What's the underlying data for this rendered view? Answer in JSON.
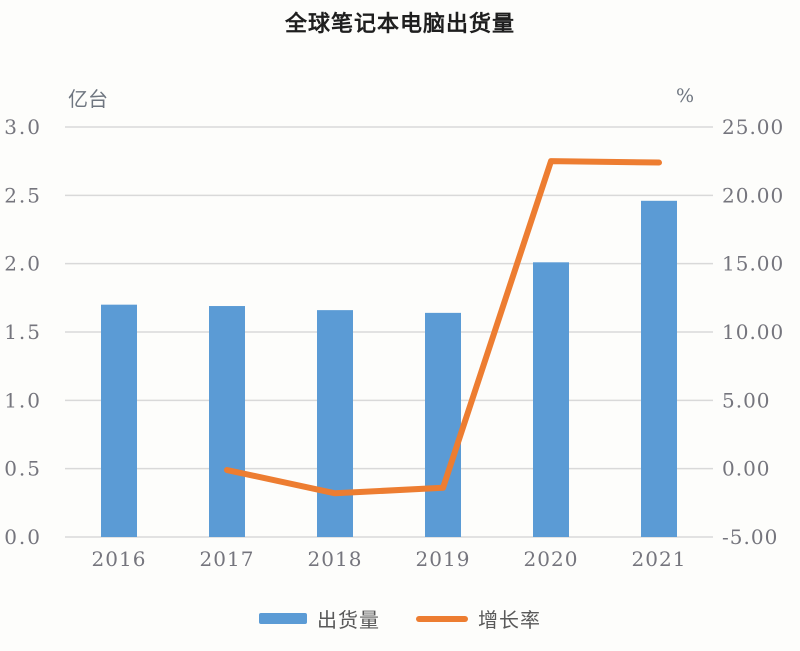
{
  "title": "全球笔记本电脑出货量",
  "chart_data": {
    "type": "bar+line combo",
    "title": "全球笔记本电脑出货量",
    "categories": [
      "2016",
      "2017",
      "2018",
      "2019",
      "2020",
      "2021"
    ],
    "series": [
      {
        "name": "出货量",
        "type": "bar",
        "axis": "left",
        "color": "#5b9bd5",
        "values": [
          1.7,
          1.69,
          1.66,
          1.64,
          2.01,
          2.46
        ]
      },
      {
        "name": "增长率",
        "type": "line",
        "axis": "right",
        "color": "#ed7d31",
        "values": [
          null,
          -0.1,
          -1.8,
          -1.4,
          22.5,
          22.4
        ]
      }
    ],
    "left_axis": {
      "label": "亿台",
      "min": 0,
      "max": 3,
      "step": 0.5,
      "tick_labels": [
        "0.0",
        "0.5",
        "1.0",
        "1.5",
        "2.0",
        "2.5",
        "3.0"
      ]
    },
    "right_axis": {
      "label": "%",
      "min": -5,
      "max": 25,
      "step": 5,
      "tick_labels": [
        "-5.00",
        "0.00",
        "5.00",
        "10.00",
        "15.00",
        "20.00",
        "25.00"
      ]
    },
    "grid": "horizontal only",
    "legend_position": "bottom"
  },
  "legend": {
    "items": [
      {
        "label": "出货量",
        "color": "#5b9bd5",
        "swatch": "bar"
      },
      {
        "label": "增长率",
        "color": "#ed7d31",
        "swatch": "line"
      }
    ]
  },
  "colors": {
    "bar": "#5b9bd5",
    "line": "#ed7d31",
    "gridline": "#d9d9d9",
    "tick_text": "#75757d",
    "title_text": "#1f1f1f",
    "legend_text": "#595959",
    "background": "#fdfdfb"
  }
}
